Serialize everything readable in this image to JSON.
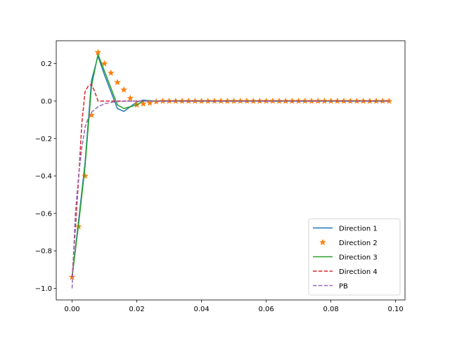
{
  "chart_data": {
    "type": "line",
    "title": "",
    "xlabel": "",
    "ylabel": "",
    "xlim": [
      -0.0049,
      0.1029
    ],
    "ylim": [
      -1.062,
      0.322
    ],
    "xticks": [
      0.0,
      0.02,
      0.04,
      0.06,
      0.08,
      0.1
    ],
    "xtick_labels": [
      "0.00",
      "0.02",
      "0.04",
      "0.06",
      "0.08",
      "0.10"
    ],
    "yticks": [
      -1.0,
      -0.8,
      -0.6,
      -0.4,
      -0.2,
      0.0,
      0.2
    ],
    "ytick_labels": [
      "−1.0",
      "−0.8",
      "−0.6",
      "−0.4",
      "−0.2",
      "0.0",
      "0.2"
    ],
    "grid": false,
    "legend_position": "lower-right",
    "series": [
      {
        "name": "Direction 1",
        "style": "solid",
        "marker": "none",
        "color": "#1f77b4",
        "x": [
          0.0,
          0.002,
          0.004,
          0.006,
          0.008,
          0.01,
          0.012,
          0.014,
          0.016,
          0.018,
          0.02,
          0.022,
          0.024,
          0.026,
          0.028,
          0.03,
          0.098
        ],
        "y": [
          -0.94,
          -0.64,
          -0.33,
          0.11,
          0.24,
          0.14,
          0.05,
          -0.04,
          -0.055,
          -0.03,
          -0.005,
          0.005,
          0.002,
          0.0,
          0.0,
          0.0,
          0.0
        ]
      },
      {
        "name": "Direction 2",
        "style": "none",
        "marker": "star",
        "color": "#ff7f0e",
        "x": [
          0.0,
          0.002,
          0.004,
          0.006,
          0.008,
          0.01,
          0.012,
          0.014,
          0.016,
          0.018,
          0.02,
          0.022,
          0.024,
          0.026,
          0.028,
          0.03,
          0.032,
          0.034,
          0.036,
          0.038,
          0.04,
          0.042,
          0.044,
          0.046,
          0.048,
          0.05,
          0.052,
          0.054,
          0.056,
          0.058,
          0.06,
          0.062,
          0.064,
          0.066,
          0.068,
          0.07,
          0.072,
          0.074,
          0.076,
          0.078,
          0.08,
          0.082,
          0.084,
          0.086,
          0.088,
          0.09,
          0.092,
          0.094,
          0.096,
          0.098
        ],
        "y": [
          -0.94,
          -0.67,
          -0.4,
          -0.075,
          0.26,
          0.2,
          0.15,
          0.1,
          0.06,
          0.015,
          -0.02,
          -0.015,
          -0.01,
          -0.003,
          0.0,
          0.0,
          0.0,
          0.0,
          0.0,
          0.0,
          0.0,
          0.0,
          0.0,
          0.0,
          0.0,
          0.0,
          0.0,
          0.0,
          0.0,
          0.0,
          0.0,
          0.0,
          0.0,
          0.0,
          0.0,
          0.0,
          0.0,
          0.0,
          0.0,
          0.0,
          0.0,
          0.0,
          0.0,
          0.0,
          0.0,
          0.0,
          0.0,
          0.0,
          0.0,
          0.0
        ]
      },
      {
        "name": "Direction 3",
        "style": "solid",
        "marker": "none",
        "color": "#2ca02c",
        "x": [
          0.0,
          0.002,
          0.004,
          0.006,
          0.008,
          0.01,
          0.012,
          0.014,
          0.016,
          0.018,
          0.02,
          0.022,
          0.024,
          0.026,
          0.028,
          0.098
        ],
        "y": [
          -0.94,
          -0.66,
          -0.35,
          0.08,
          0.25,
          0.16,
          0.07,
          -0.02,
          -0.04,
          -0.03,
          -0.02,
          0.0,
          0.002,
          0.0,
          0.0,
          0.0
        ]
      },
      {
        "name": "Direction 4",
        "style": "dashed",
        "marker": "none",
        "color": "#d62728",
        "x": [
          0.0,
          0.001,
          0.002,
          0.003,
          0.004,
          0.005,
          0.006,
          0.007,
          0.008,
          0.01,
          0.012,
          0.098
        ],
        "y": [
          -0.94,
          -0.68,
          -0.42,
          -0.12,
          0.05,
          0.08,
          0.09,
          0.05,
          0.0,
          0.0,
          0.0,
          0.0
        ]
      },
      {
        "name": "PB",
        "style": "dashed",
        "marker": "none",
        "color": "#9467bd",
        "x": [
          0.0,
          0.0005,
          0.001,
          0.002,
          0.003,
          0.004,
          0.005,
          0.006,
          0.008,
          0.01,
          0.012,
          0.014,
          0.016,
          0.018,
          0.02,
          0.022,
          0.024,
          0.098
        ],
        "y": [
          -1.0,
          -0.8,
          -0.6,
          -0.4,
          -0.25,
          -0.14,
          -0.09,
          -0.06,
          -0.03,
          -0.015,
          -0.007,
          -0.003,
          -0.001,
          0.0,
          0.0,
          0.0,
          0.0,
          0.0
        ]
      }
    ]
  }
}
